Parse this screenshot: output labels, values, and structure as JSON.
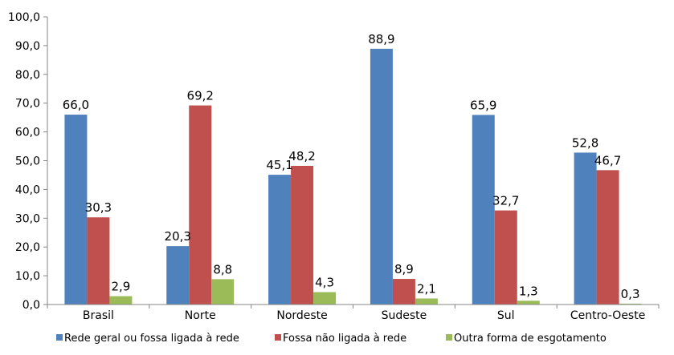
{
  "chart_data": {
    "type": "bar",
    "categories": [
      "Brasil",
      "Norte",
      "Nordeste",
      "Sudeste",
      "Sul",
      "Centro-Oeste"
    ],
    "series": [
      {
        "name": "Rede geral ou fossa ligada à rede",
        "color": "#4F81BD",
        "values": [
          66.0,
          20.3,
          45.1,
          88.9,
          65.9,
          52.8
        ],
        "labels": [
          "66,0",
          "20,3",
          "45,1",
          "88,9",
          "65,9",
          "52,8"
        ]
      },
      {
        "name": "Fossa não ligada à rede",
        "color": "#C0504D",
        "values": [
          30.3,
          69.2,
          48.2,
          8.9,
          32.7,
          46.7
        ],
        "labels": [
          "30,3",
          "69,2",
          "48,2",
          "8,9",
          "32,7",
          "46,7"
        ]
      },
      {
        "name": "Outra forma de esgotamento",
        "color": "#9BBB59",
        "values": [
          2.9,
          8.8,
          4.3,
          2.1,
          1.3,
          0.3
        ],
        "labels": [
          "2,9",
          "8,8",
          "4,3",
          "2,1",
          "1,3",
          "0,3"
        ]
      }
    ],
    "ylim": [
      0,
      100
    ],
    "yticks": [
      0,
      10,
      20,
      30,
      40,
      50,
      60,
      70,
      80,
      90,
      100
    ],
    "ytick_labels": [
      "0,0",
      "10,0",
      "20,0",
      "30,0",
      "40,0",
      "50,0",
      "60,0",
      "70,0",
      "80,0",
      "90,0",
      "100,0"
    ],
    "grid": false,
    "legend_position": "bottom",
    "title": "",
    "xlabel": "",
    "ylabel": ""
  }
}
